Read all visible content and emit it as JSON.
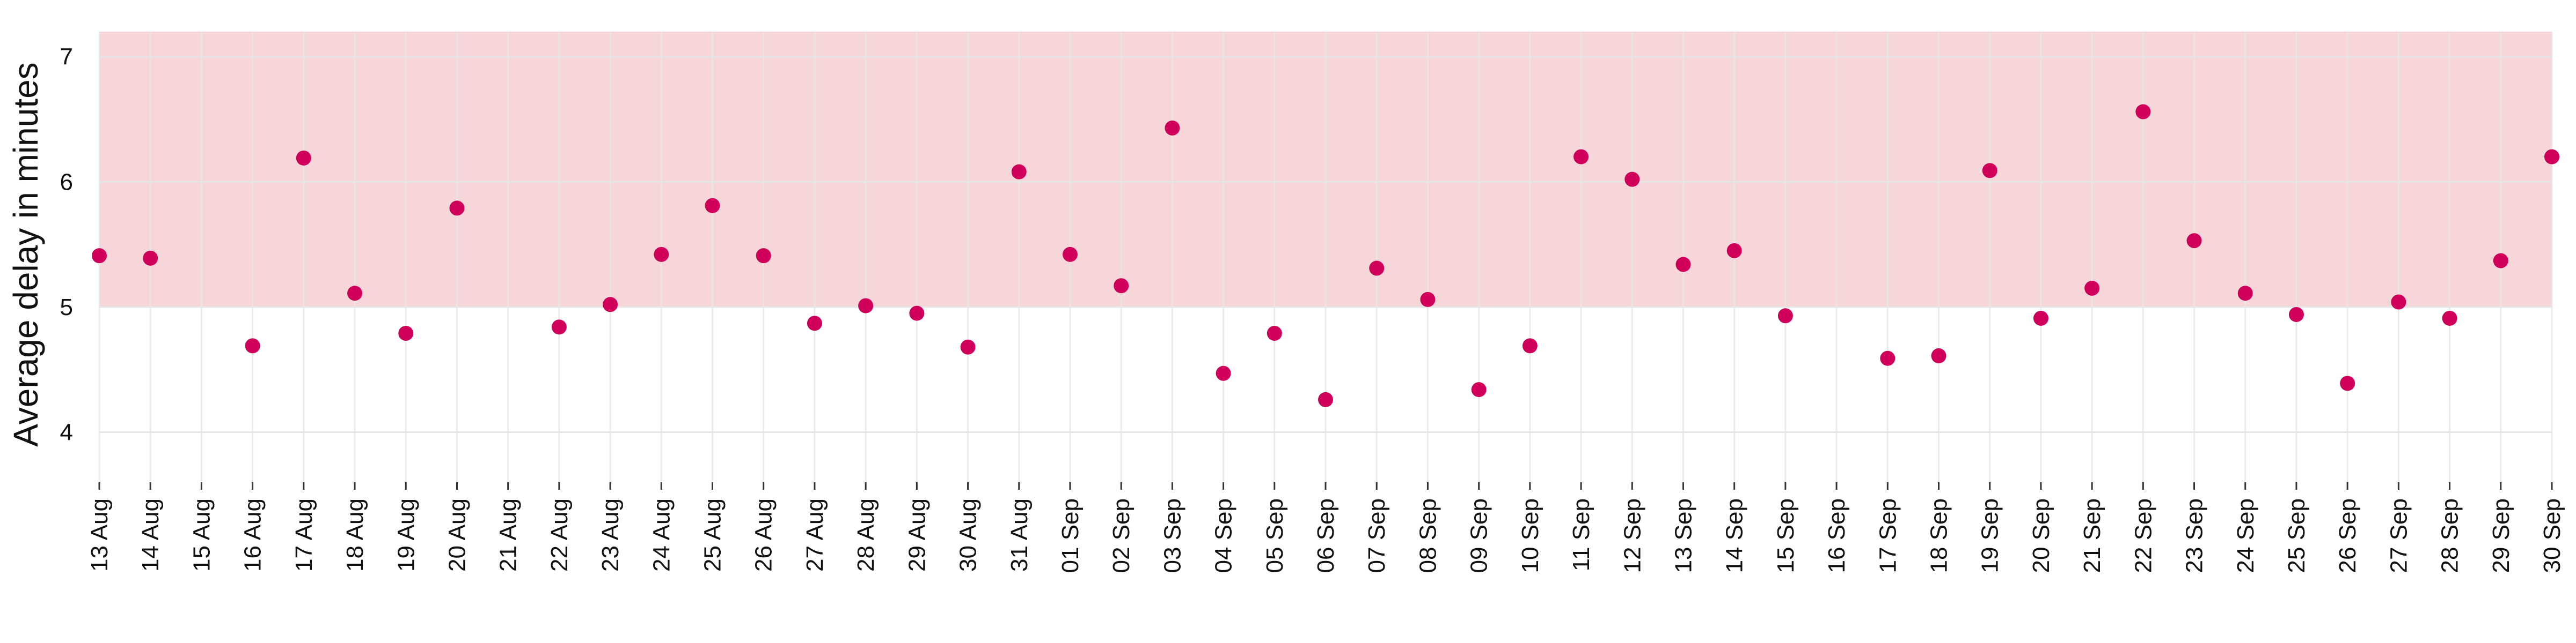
{
  "chart_data": {
    "type": "scatter",
    "title": "",
    "xlabel": "",
    "ylabel": "Average delay in minutes",
    "x": [
      "13 Aug",
      "14 Aug",
      "15 Aug",
      "16 Aug",
      "17 Aug",
      "18 Aug",
      "19 Aug",
      "20 Aug",
      "21 Aug",
      "22 Aug",
      "23 Aug",
      "24 Aug",
      "25 Aug",
      "26 Aug",
      "27 Aug",
      "28 Aug",
      "29 Aug",
      "30 Aug",
      "31 Aug",
      "01 Sep",
      "02 Sep",
      "03 Sep",
      "04 Sep",
      "05 Sep",
      "06 Sep",
      "07 Sep",
      "08 Sep",
      "09 Sep",
      "10 Sep",
      "11 Sep",
      "12 Sep",
      "13 Sep",
      "14 Sep",
      "15 Sep",
      "16 Sep",
      "17 Sep",
      "18 Sep",
      "19 Sep",
      "20 Sep",
      "21 Sep",
      "22 Sep",
      "23 Sep",
      "24 Sep",
      "25 Sep",
      "26 Sep",
      "27 Sep",
      "28 Sep",
      "29 Sep",
      "30 Sep"
    ],
    "series": [
      {
        "values": [
          5.41,
          5.39,
          null,
          4.69,
          6.19,
          5.11,
          4.79,
          5.79,
          null,
          4.84,
          5.02,
          5.42,
          5.81,
          5.41,
          4.87,
          5.01,
          4.95,
          4.68,
          6.08,
          5.42,
          5.17,
          6.43,
          4.47,
          4.79,
          4.26,
          5.31,
          5.06,
          4.34,
          4.69,
          6.2,
          6.02,
          5.34,
          5.45,
          4.93,
          null,
          4.59,
          4.61,
          6.09,
          4.91,
          5.15,
          6.56,
          5.53,
          5.11,
          4.94,
          4.39,
          5.04,
          4.91,
          5.37,
          6.2
        ],
        "color": "#d0005a"
      }
    ],
    "yticks": [
      4,
      5,
      6,
      7
    ],
    "ylim": [
      3.6,
      7.2
    ],
    "highlight_band": {
      "from": 5,
      "to": 7.2,
      "color": "#f6d6d9"
    },
    "grid": true
  }
}
